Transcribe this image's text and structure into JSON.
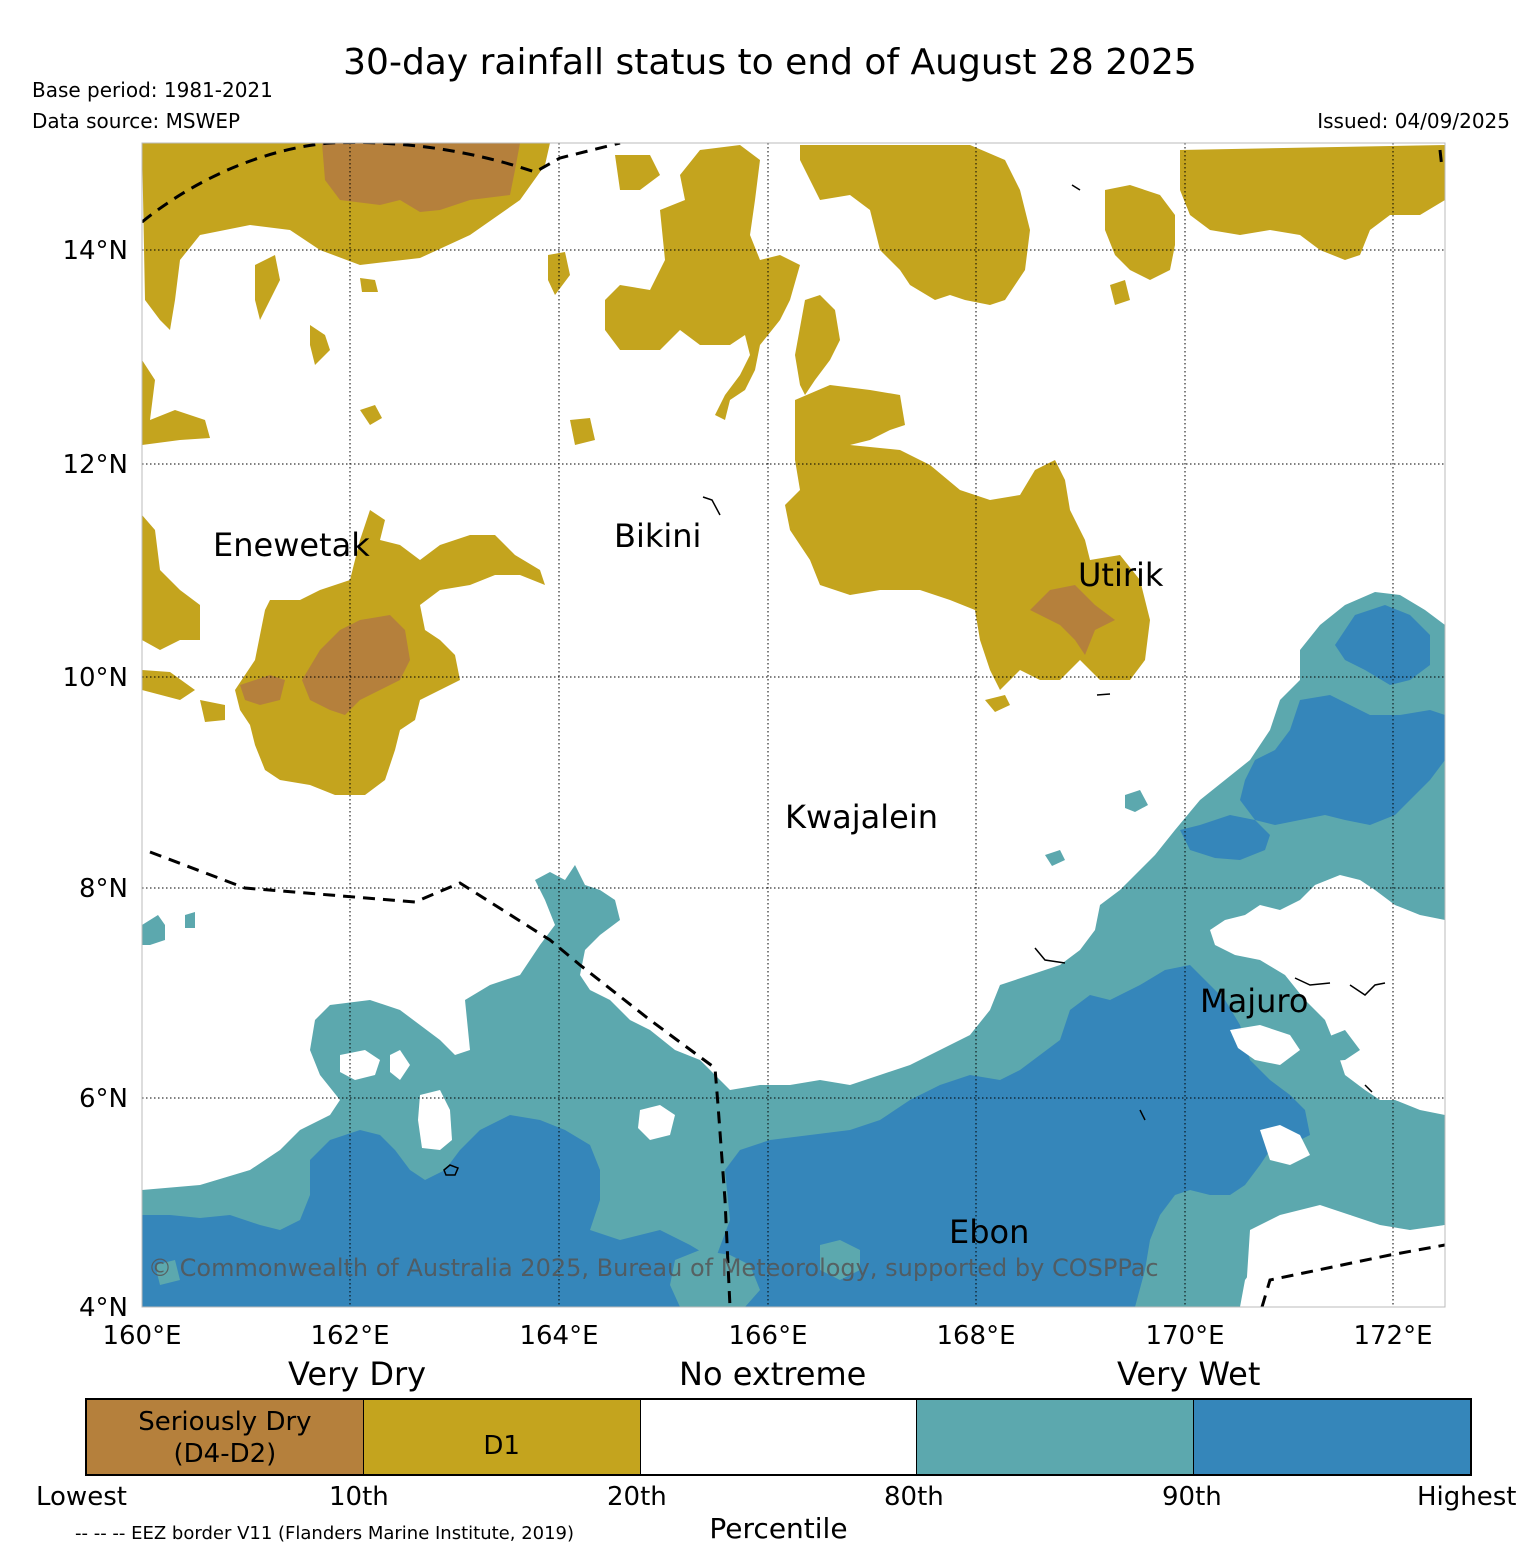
{
  "title": "30-day rainfall status to end of August 28 2025",
  "base_period": "Base period: 1981-2021",
  "data_source": "Data source: MSWEP",
  "issued": "Issued: 04/09/2025",
  "copyright": "© Commonwealth of Australia 2025, Bureau of Meteorology, supported by COSPPac",
  "eez_note": "-- -- -- EEZ border V11 (Flanders Marine Institute, 2019)",
  "map": {
    "lon_ticks": [
      "160°E",
      "162°E",
      "164°E",
      "166°E",
      "168°E",
      "170°E",
      "172°E"
    ],
    "lat_ticks": [
      "14°N",
      "12°N",
      "10°N",
      "8°N",
      "6°N",
      "4°N"
    ],
    "places": [
      {
        "name": "Enewetak"
      },
      {
        "name": "Bikini"
      },
      {
        "name": "Utirik"
      },
      {
        "name": "Kwajalein"
      },
      {
        "name": "Majuro"
      },
      {
        "name": "Ebon"
      }
    ]
  },
  "legend": {
    "categories": [
      "Very Dry",
      "No extreme",
      "Very Wet"
    ],
    "segments": [
      {
        "label": "Seriously Dry\n(D4-D2)",
        "color": "#b5803c"
      },
      {
        "label": "D1",
        "color": "#c4a41e"
      },
      {
        "label": "",
        "color": "#ffffff"
      },
      {
        "label": "",
        "color": "#5ca8ae"
      },
      {
        "label": "",
        "color": "#3586ba"
      }
    ],
    "percentiles": [
      "Lowest",
      "10th",
      "20th",
      "80th",
      "90th",
      "Highest"
    ],
    "xlabel": "Percentile"
  },
  "colors": {
    "seriously_dry": "#b5803c",
    "d1": "#c4a41e",
    "wet": "#5ca8ae",
    "very_wet": "#3586ba"
  }
}
